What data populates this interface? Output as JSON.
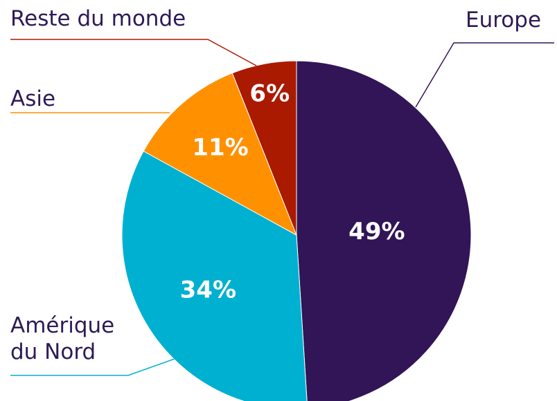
{
  "chart_data": {
    "type": "pie",
    "categories": [
      "Europe",
      "Amérique du Nord",
      "Asie",
      "Reste du monde"
    ],
    "values": [
      49,
      34,
      11,
      6
    ],
    "value_labels": [
      "49%",
      "34%",
      "11%",
      "6%"
    ],
    "colors": [
      "#311557",
      "#00b0d0",
      "#ff9000",
      "#aa1a00"
    ]
  }
}
